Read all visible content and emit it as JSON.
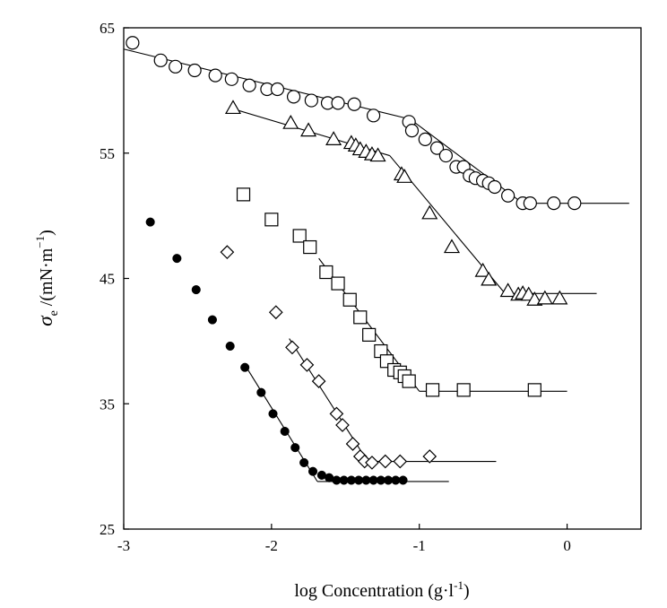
{
  "chart_data": {
    "type": "scatter",
    "title": "",
    "xlabel": "log Concentration (g·l⁻¹)",
    "xlabel_parts": {
      "main": "log Concentration (g·l",
      "sup": "-1",
      "close": ")"
    },
    "ylabel_parts": {
      "sym": "σ",
      "sub": "e",
      "main": " /(mN·m",
      "sup": "−1",
      "close": ")"
    },
    "xlim": [
      -3,
      0.5
    ],
    "ylim": [
      25,
      65
    ],
    "x_ticks": [
      -3,
      -2,
      -1,
      0
    ],
    "x_tick_labels": [
      "-3",
      "-2",
      "-1",
      "0"
    ],
    "y_ticks": [
      25,
      35,
      45,
      55,
      65
    ],
    "y_tick_labels": [
      "25",
      "35",
      "45",
      "55",
      "65"
    ],
    "grid": false,
    "legend": "none",
    "series": [
      {
        "marker": "circle-open",
        "points": [
          [
            -2.94,
            63.8
          ],
          [
            -2.75,
            62.4
          ],
          [
            -2.65,
            61.9
          ],
          [
            -2.52,
            61.6
          ],
          [
            -2.38,
            61.2
          ],
          [
            -2.27,
            60.9
          ],
          [
            -2.15,
            60.4
          ],
          [
            -2.03,
            60.1
          ],
          [
            -1.96,
            60.1
          ],
          [
            -1.85,
            59.5
          ],
          [
            -1.73,
            59.2
          ],
          [
            -1.62,
            59.0
          ],
          [
            -1.55,
            59.0
          ],
          [
            -1.44,
            58.9
          ],
          [
            -1.31,
            58.0
          ],
          [
            -1.07,
            57.5
          ],
          [
            -1.05,
            56.8
          ],
          [
            -0.96,
            56.1
          ],
          [
            -0.88,
            55.4
          ],
          [
            -0.82,
            54.8
          ],
          [
            -0.75,
            53.9
          ],
          [
            -0.7,
            53.9
          ],
          [
            -0.66,
            53.2
          ],
          [
            -0.62,
            53.0
          ],
          [
            -0.57,
            52.8
          ],
          [
            -0.53,
            52.6
          ],
          [
            -0.49,
            52.3
          ],
          [
            -0.4,
            51.6
          ],
          [
            -0.3,
            51.0
          ],
          [
            -0.25,
            51.0
          ],
          [
            -0.09,
            51.0
          ],
          [
            0.05,
            51.0
          ]
        ],
        "fit": [
          [
            [
              -3.0,
              63.3
            ],
            [
              -1.06,
              57.7
            ]
          ],
          [
            [
              -1.06,
              57.7
            ],
            [
              -0.3,
              51.0
            ]
          ],
          [
            [
              -0.3,
              51.0
            ],
            [
              0.42,
              51.0
            ]
          ]
        ]
      },
      {
        "marker": "triangle-open",
        "points": [
          [
            -2.26,
            58.6
          ],
          [
            -1.87,
            57.4
          ],
          [
            -1.75,
            56.8
          ],
          [
            -1.58,
            56.1
          ],
          [
            -1.46,
            55.8
          ],
          [
            -1.43,
            55.6
          ],
          [
            -1.4,
            55.3
          ],
          [
            -1.36,
            55.1
          ],
          [
            -1.32,
            54.9
          ],
          [
            -1.28,
            54.8
          ],
          [
            -1.12,
            53.3
          ],
          [
            -1.1,
            53.1
          ],
          [
            -0.93,
            50.2
          ],
          [
            -0.78,
            47.5
          ],
          [
            -0.57,
            45.6
          ],
          [
            -0.53,
            44.9
          ],
          [
            -0.4,
            44.0
          ],
          [
            -0.33,
            43.7
          ],
          [
            -0.3,
            43.8
          ],
          [
            -0.26,
            43.7
          ],
          [
            -0.22,
            43.3
          ],
          [
            -0.15,
            43.4
          ],
          [
            -0.05,
            43.4
          ]
        ],
        "fit": [
          [
            [
              -2.28,
              58.6
            ],
            [
              -1.2,
              54.8
            ]
          ],
          [
            [
              -1.2,
              54.8
            ],
            [
              -0.42,
              43.8
            ]
          ],
          [
            [
              -0.42,
              43.8
            ],
            [
              0.2,
              43.8
            ]
          ]
        ]
      },
      {
        "marker": "square-open",
        "points": [
          [
            -2.19,
            51.7
          ],
          [
            -2.0,
            49.7
          ],
          [
            -1.81,
            48.4
          ],
          [
            -1.74,
            47.5
          ],
          [
            -1.63,
            45.5
          ],
          [
            -1.55,
            44.6
          ],
          [
            -1.47,
            43.3
          ],
          [
            -1.4,
            41.9
          ],
          [
            -1.34,
            40.5
          ],
          [
            -1.26,
            39.2
          ],
          [
            -1.22,
            38.4
          ],
          [
            -1.17,
            37.7
          ],
          [
            -1.13,
            37.5
          ],
          [
            -1.1,
            37.2
          ],
          [
            -1.07,
            36.8
          ],
          [
            -0.91,
            36.1
          ],
          [
            -0.7,
            36.1
          ],
          [
            -0.22,
            36.1
          ]
        ],
        "fit": [
          [
            [
              -1.68,
              46.6
            ],
            [
              -1.0,
              36.0
            ]
          ],
          [
            [
              -1.0,
              36.0
            ],
            [
              0.0,
              36.0
            ]
          ]
        ]
      },
      {
        "marker": "diamond-open",
        "points": [
          [
            -2.3,
            47.1
          ],
          [
            -1.97,
            42.3
          ],
          [
            -1.86,
            39.5
          ],
          [
            -1.76,
            38.1
          ],
          [
            -1.68,
            36.8
          ],
          [
            -1.56,
            34.2
          ],
          [
            -1.52,
            33.3
          ],
          [
            -1.45,
            31.8
          ],
          [
            -1.4,
            30.8
          ],
          [
            -1.37,
            30.4
          ],
          [
            -1.32,
            30.3
          ],
          [
            -1.23,
            30.4
          ],
          [
            -1.13,
            30.4
          ],
          [
            -0.93,
            30.8
          ]
        ],
        "fit": [
          [
            [
              -1.88,
              40.2
            ],
            [
              -1.35,
              30.4
            ]
          ],
          [
            [
              -1.35,
              30.4
            ],
            [
              -0.48,
              30.4
            ]
          ]
        ]
      },
      {
        "marker": "circle-filled",
        "points": [
          [
            -2.82,
            49.5
          ],
          [
            -2.64,
            46.6
          ],
          [
            -2.51,
            44.1
          ],
          [
            -2.4,
            41.7
          ],
          [
            -2.28,
            39.6
          ],
          [
            -2.18,
            37.9
          ],
          [
            -2.07,
            35.9
          ],
          [
            -1.99,
            34.2
          ],
          [
            -1.91,
            32.8
          ],
          [
            -1.84,
            31.5
          ],
          [
            -1.78,
            30.3
          ],
          [
            -1.72,
            29.6
          ],
          [
            -1.66,
            29.3
          ],
          [
            -1.61,
            29.1
          ],
          [
            -1.56,
            28.9
          ],
          [
            -1.51,
            28.9
          ],
          [
            -1.46,
            28.9
          ],
          [
            -1.41,
            28.9
          ],
          [
            -1.36,
            28.9
          ],
          [
            -1.31,
            28.9
          ],
          [
            -1.26,
            28.9
          ],
          [
            -1.21,
            28.9
          ],
          [
            -1.16,
            28.9
          ],
          [
            -1.11,
            28.9
          ]
        ],
        "fit": [
          [
            [
              -2.18,
              38.1
            ],
            [
              -1.69,
              28.8
            ]
          ],
          [
            [
              -1.69,
              28.8
            ],
            [
              -0.8,
              28.8
            ]
          ]
        ]
      }
    ]
  }
}
